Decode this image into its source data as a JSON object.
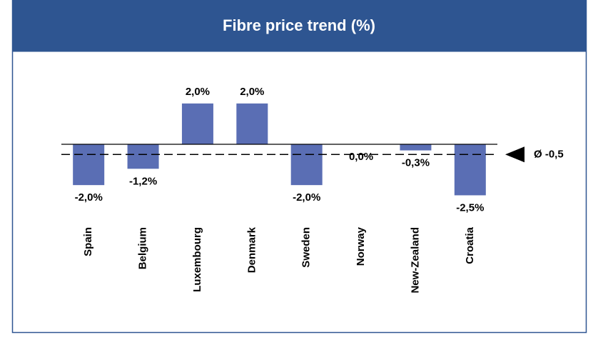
{
  "chart_data": {
    "type": "bar",
    "title": "Fibre price trend (%)",
    "categories": [
      "Spain",
      "Belgium",
      "Luxembourg",
      "Denmark",
      "Sweden",
      "Norway",
      "New-Zealand",
      "Croatia"
    ],
    "values": [
      -2.0,
      -1.2,
      2.0,
      2.0,
      -2.0,
      0.0,
      -0.3,
      -2.5
    ],
    "value_labels": [
      "-2,0%",
      "-1,2%",
      "2,0%",
      "2,0%",
      "-2,0%",
      "0,0%",
      "-0,3%",
      "-2,5%"
    ],
    "color": "#5a6eb4",
    "ylim": [
      -3.5,
      3.5
    ],
    "average": -0.5,
    "average_label": "Ø -0,5"
  }
}
